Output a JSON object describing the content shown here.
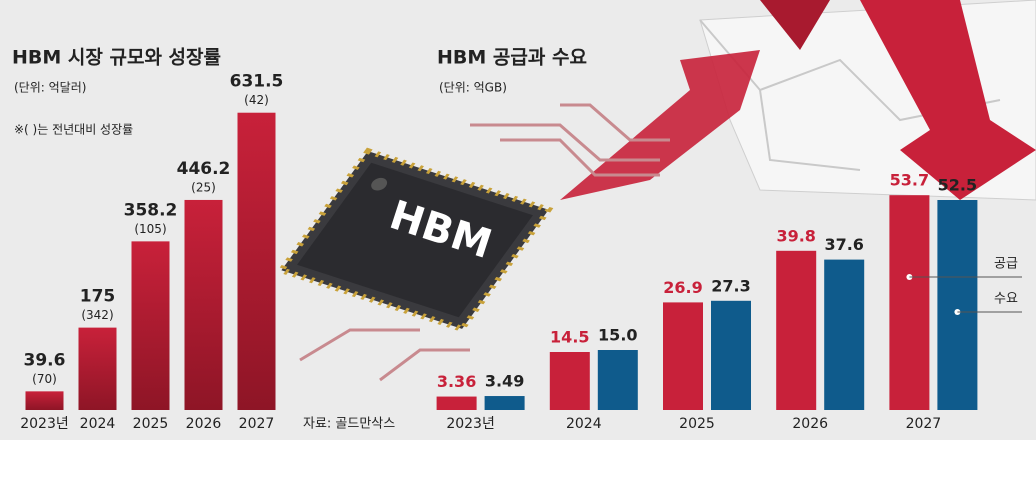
{
  "chart_data": [
    {
      "type": "bar",
      "title": "HBM 시장 규모와 성장률",
      "subtitle": "(단위: 억달러)",
      "note": "※( )는 전년대비 성장률",
      "categories": [
        "2023년",
        "2024",
        "2025",
        "2026",
        "2027"
      ],
      "values": [
        39.6,
        175,
        358.2,
        446.2,
        631.5
      ],
      "growth_labels": [
        "(70)",
        "(342)",
        "(105)",
        "(25)",
        "(42)"
      ],
      "color": "#b81c33",
      "ylim": [
        0,
        650
      ],
      "source": "자료: 골드만삭스"
    },
    {
      "type": "grouped-bar",
      "title": "HBM 공급과 수요",
      "subtitle": "(단위: 억GB)",
      "categories": [
        "2023년",
        "2024",
        "2025",
        "2026",
        "2027"
      ],
      "series": [
        {
          "name": "공급",
          "color": "#c8213a",
          "values": [
            3.36,
            14.5,
            26.9,
            39.8,
            53.7
          ]
        },
        {
          "name": "수요",
          "color": "#0f5b8c",
          "values": [
            3.49,
            15,
            27.3,
            37.6,
            52.5
          ],
          "value_labels": [
            "3.49",
            "15.0",
            "27.3",
            "37.6",
            "52.5"
          ]
        }
      ],
      "ylim": [
        0,
        60
      ]
    }
  ],
  "illustration": {
    "chip_label": "HBM"
  }
}
